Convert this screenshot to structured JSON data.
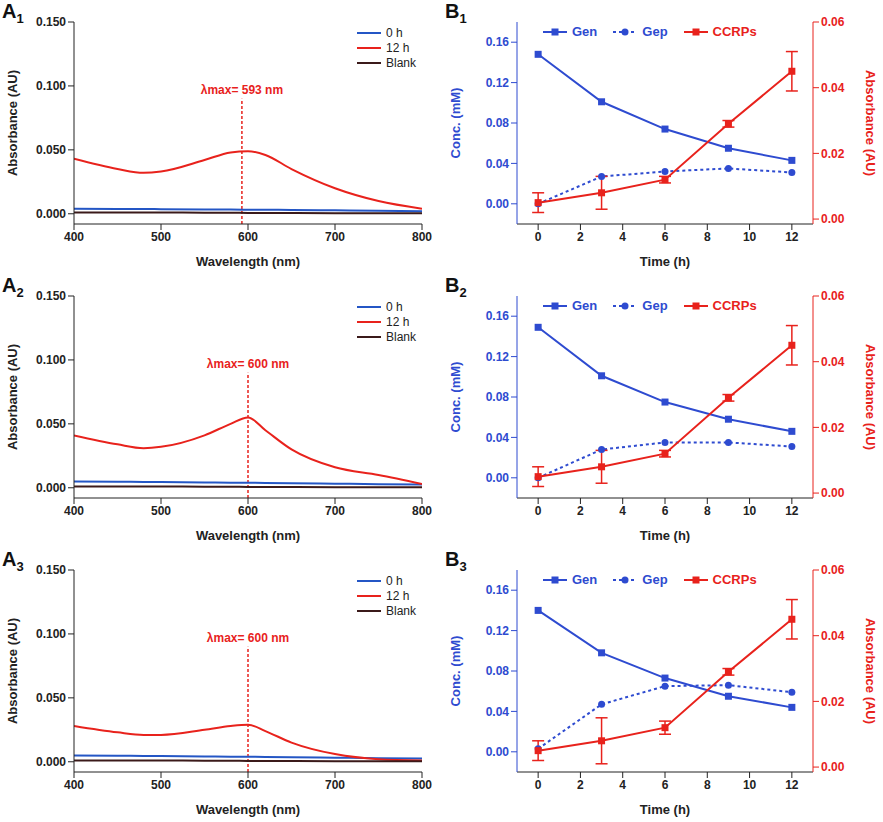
{
  "chart_data": [
    {
      "panel": "A1",
      "type": "line",
      "x_label": "Wavelength (nm)",
      "y_label": "Absorbance (AU)",
      "legend": "upper right",
      "x": [
        400,
        450,
        480,
        500,
        550,
        580,
        600,
        620,
        650,
        700,
        750,
        800
      ],
      "xlim": [
        400,
        800
      ],
      "xticks": [
        400,
        500,
        600,
        700,
        800
      ],
      "ylim": [
        -0.008,
        0.15
      ],
      "yticks": [
        {
          "value": 0,
          "label": "0.000"
        },
        {
          "value": 0.05,
          "label": "0.050"
        },
        {
          "value": 0.1,
          "label": "0.100"
        },
        {
          "value": 0.15,
          "label": "0.150"
        }
      ],
      "annotation": {
        "text": "λmax= 593 nm",
        "x": 593,
        "y": 0.09
      },
      "series": [
        {
          "name": "0 h",
          "color": "#2456c5",
          "values": [
            0.004,
            0.0038,
            0.0037,
            0.0036,
            0.0034,
            0.0033,
            0.0032,
            0.0031,
            0.003,
            0.0027,
            0.0024,
            0.002
          ]
        },
        {
          "name": "12 h",
          "color": "#e8221c",
          "values": [
            0.043,
            0.035,
            0.032,
            0.033,
            0.042,
            0.048,
            0.049,
            0.046,
            0.035,
            0.02,
            0.01,
            0.004
          ]
        },
        {
          "name": "Blank",
          "color": "#3b1a1a",
          "values": [
            0.001,
            0.001,
            0.001,
            0.001,
            0.0008,
            0.0008,
            0.0007,
            0.0007,
            0.0006,
            0.0005,
            0.0005,
            0.0005
          ]
        }
      ]
    },
    {
      "panel": "A2",
      "type": "line",
      "x_label": "Wavelength (nm)",
      "y_label": "Absorbance (AU)",
      "legend": "upper right",
      "x": [
        400,
        450,
        480,
        500,
        550,
        580,
        600,
        620,
        650,
        700,
        750,
        800
      ],
      "xlim": [
        400,
        800
      ],
      "xticks": [
        400,
        500,
        600,
        700,
        800
      ],
      "ylim": [
        -0.008,
        0.15
      ],
      "yticks": [
        {
          "value": 0,
          "label": "0.000"
        },
        {
          "value": 0.05,
          "label": "0.050"
        },
        {
          "value": 0.1,
          "label": "0.100"
        },
        {
          "value": 0.15,
          "label": "0.150"
        }
      ],
      "annotation": {
        "text": "λmax= 600 nm",
        "x": 600,
        "y": 0.09
      },
      "series": [
        {
          "name": "0 h",
          "color": "#2456c5",
          "values": [
            0.005,
            0.0048,
            0.0046,
            0.0045,
            0.0042,
            0.004,
            0.0039,
            0.0038,
            0.0036,
            0.0032,
            0.0028,
            0.0025
          ]
        },
        {
          "name": "12 h",
          "color": "#e8221c",
          "values": [
            0.041,
            0.034,
            0.031,
            0.032,
            0.041,
            0.05,
            0.055,
            0.045,
            0.03,
            0.016,
            0.01,
            0.003
          ]
        },
        {
          "name": "Blank",
          "color": "#3b1a1a",
          "values": [
            0.001,
            0.001,
            0.001,
            0.001,
            0.0008,
            0.0008,
            0.0007,
            0.0007,
            0.0006,
            0.0005,
            0.0005,
            0.0005
          ]
        }
      ]
    },
    {
      "panel": "A3",
      "type": "line",
      "x_label": "Wavelength (nm)",
      "y_label": "Absorbance (AU)",
      "legend": "upper right",
      "x": [
        400,
        450,
        480,
        500,
        550,
        580,
        600,
        620,
        650,
        700,
        750,
        800
      ],
      "xlim": [
        400,
        800
      ],
      "xticks": [
        400,
        500,
        600,
        700,
        800
      ],
      "ylim": [
        -0.008,
        0.15
      ],
      "yticks": [
        {
          "value": 0,
          "label": "0.000"
        },
        {
          "value": 0.05,
          "label": "0.050"
        },
        {
          "value": 0.1,
          "label": "0.100"
        },
        {
          "value": 0.15,
          "label": "0.150"
        }
      ],
      "annotation": {
        "text": "λmax= 600 nm",
        "x": 600,
        "y": 0.09
      },
      "series": [
        {
          "name": "0 h",
          "color": "#2456c5",
          "values": [
            0.005,
            0.0048,
            0.0046,
            0.0045,
            0.0042,
            0.004,
            0.0039,
            0.0038,
            0.0036,
            0.0032,
            0.0028,
            0.0025
          ]
        },
        {
          "name": "12 h",
          "color": "#e8221c",
          "values": [
            0.028,
            0.023,
            0.021,
            0.021,
            0.025,
            0.028,
            0.029,
            0.024,
            0.015,
            0.006,
            0.002,
            0.001
          ]
        },
        {
          "name": "Blank",
          "color": "#3b1a1a",
          "values": [
            0.001,
            0.001,
            0.001,
            0.001,
            0.0008,
            0.0008,
            0.0007,
            0.0007,
            0.0006,
            0.0005,
            0.0005,
            0.0005
          ]
        }
      ]
    },
    {
      "panel": "B1",
      "type": "line",
      "x_label": "Time (h)",
      "y_label": "Conc. (mM)",
      "y2_label": "Absorbance (AU)",
      "legend": "top",
      "x": [
        0,
        3,
        6,
        9,
        12
      ],
      "xlim": [
        -1,
        13
      ],
      "xticks": [
        0,
        2,
        4,
        6,
        8,
        10,
        12
      ],
      "ylim": [
        -0.02,
        0.18
      ],
      "yticks": [
        {
          "value": 0,
          "label": "0.00"
        },
        {
          "value": 0.04,
          "label": "0.04"
        },
        {
          "value": 0.08,
          "label": "0.08"
        },
        {
          "value": 0.12,
          "label": "0.12"
        },
        {
          "value": 0.16,
          "label": "0.16"
        }
      ],
      "y2lim": [
        -0.0015,
        0.06
      ],
      "y2ticks": [
        {
          "value": 0,
          "label": "0.00"
        },
        {
          "value": 0.02,
          "label": "0.02"
        },
        {
          "value": 0.04,
          "label": "0.04"
        },
        {
          "value": 0.06,
          "label": "0.06"
        }
      ],
      "series": [
        {
          "name": "Gen",
          "color": "#2e4bd0",
          "marker": "square",
          "line_style": "solid",
          "values": [
            0.148,
            0.101,
            0.074,
            0.055,
            0.043
          ]
        },
        {
          "name": "Gep",
          "color": "#2e4bd0",
          "marker": "circle",
          "line_style": "dotted",
          "values": [
            0.0,
            0.027,
            0.032,
            0.035,
            0.031
          ]
        },
        {
          "name": "CCRPs",
          "color": "#e8221c",
          "marker": "square",
          "line_style": "solid",
          "axis": "y2",
          "values": [
            0.005,
            0.008,
            0.012,
            0.029,
            0.045
          ],
          "errors": [
            0.003,
            0.005,
            0.001,
            0.001,
            0.006
          ]
        }
      ]
    },
    {
      "panel": "B2",
      "type": "line",
      "x_label": "Time (h)",
      "y_label": "Conc. (mM)",
      "y2_label": "Absorbance (AU)",
      "legend": "top",
      "x": [
        0,
        3,
        6,
        9,
        12
      ],
      "xlim": [
        -1,
        13
      ],
      "xticks": [
        0,
        2,
        4,
        6,
        8,
        10,
        12
      ],
      "ylim": [
        -0.02,
        0.18
      ],
      "yticks": [
        {
          "value": 0,
          "label": "0.00"
        },
        {
          "value": 0.04,
          "label": "0.04"
        },
        {
          "value": 0.08,
          "label": "0.08"
        },
        {
          "value": 0.12,
          "label": "0.12"
        },
        {
          "value": 0.16,
          "label": "0.16"
        }
      ],
      "y2lim": [
        -0.0015,
        0.06
      ],
      "y2ticks": [
        {
          "value": 0,
          "label": "0.00"
        },
        {
          "value": 0.02,
          "label": "0.02"
        },
        {
          "value": 0.04,
          "label": "0.04"
        },
        {
          "value": 0.06,
          "label": "0.06"
        }
      ],
      "series": [
        {
          "name": "Gen",
          "color": "#2e4bd0",
          "marker": "square",
          "line_style": "solid",
          "values": [
            0.149,
            0.101,
            0.075,
            0.058,
            0.046
          ]
        },
        {
          "name": "Gep",
          "color": "#2e4bd0",
          "marker": "circle",
          "line_style": "dotted",
          "values": [
            0.0,
            0.028,
            0.035,
            0.035,
            0.031
          ]
        },
        {
          "name": "CCRPs",
          "color": "#e8221c",
          "marker": "square",
          "line_style": "solid",
          "axis": "y2",
          "values": [
            0.005,
            0.008,
            0.012,
            0.029,
            0.045
          ],
          "errors": [
            0.003,
            0.005,
            0.001,
            0.001,
            0.006
          ]
        }
      ]
    },
    {
      "panel": "B3",
      "type": "line",
      "x_label": "Time (h)",
      "y_label": "Conc. (mM)",
      "y2_label": "Absorbance (AU)",
      "legend": "top",
      "x": [
        0,
        3,
        6,
        9,
        12
      ],
      "xlim": [
        -1,
        13
      ],
      "xticks": [
        0,
        2,
        4,
        6,
        8,
        10,
        12
      ],
      "ylim": [
        -0.02,
        0.18
      ],
      "yticks": [
        {
          "value": 0,
          "label": "0.00"
        },
        {
          "value": 0.04,
          "label": "0.04"
        },
        {
          "value": 0.08,
          "label": "0.08"
        },
        {
          "value": 0.12,
          "label": "0.12"
        },
        {
          "value": 0.16,
          "label": "0.16"
        }
      ],
      "y2lim": [
        -0.0015,
        0.06
      ],
      "y2ticks": [
        {
          "value": 0,
          "label": "0.00"
        },
        {
          "value": 0.02,
          "label": "0.02"
        },
        {
          "value": 0.04,
          "label": "0.04"
        },
        {
          "value": 0.06,
          "label": "0.06"
        }
      ],
      "series": [
        {
          "name": "Gen",
          "color": "#2e4bd0",
          "marker": "square",
          "line_style": "solid",
          "values": [
            0.14,
            0.098,
            0.073,
            0.055,
            0.044
          ]
        },
        {
          "name": "Gep",
          "color": "#2e4bd0",
          "marker": "circle",
          "line_style": "dotted",
          "values": [
            0.003,
            0.047,
            0.065,
            0.066,
            0.059
          ]
        },
        {
          "name": "CCRPs",
          "color": "#e8221c",
          "marker": "square",
          "line_style": "solid",
          "axis": "y2",
          "values": [
            0.005,
            0.008,
            0.012,
            0.029,
            0.045
          ],
          "errors": [
            0.003,
            0.007,
            0.002,
            0.001,
            0.006
          ]
        }
      ]
    }
  ]
}
